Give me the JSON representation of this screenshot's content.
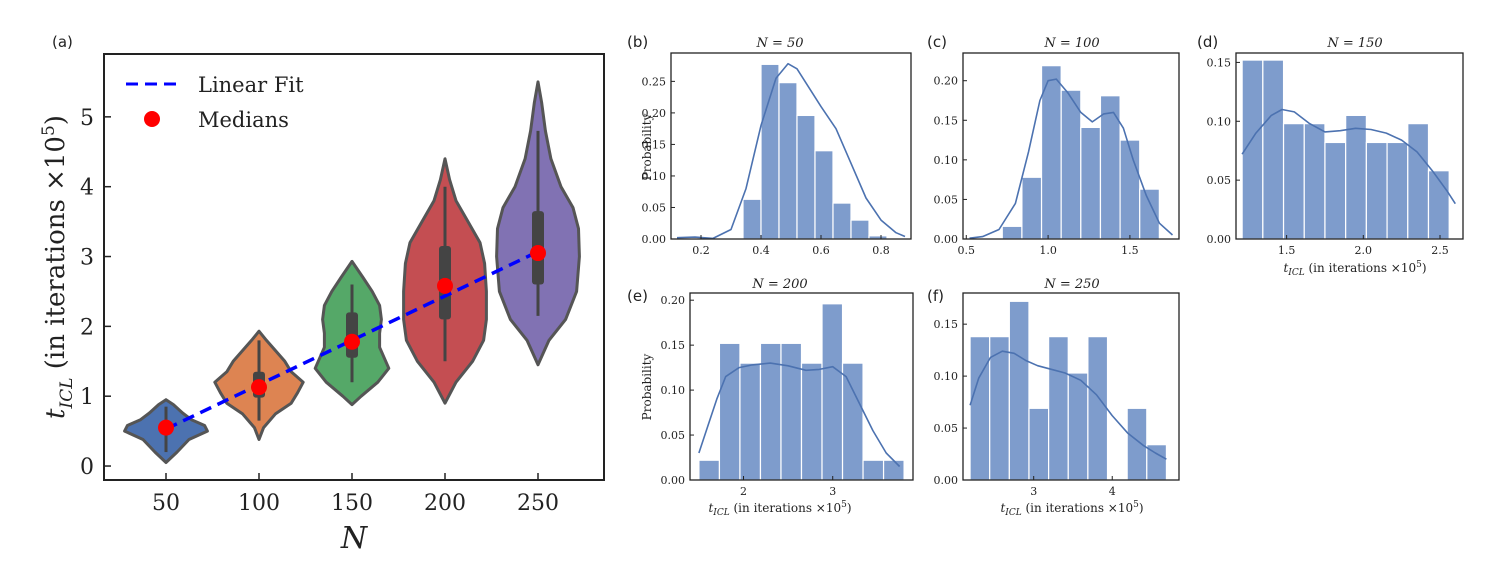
{
  "figure": {
    "colors": {
      "hist": "#7e9ccc",
      "kde": "#4c72b0",
      "fit": "#0000ff",
      "median": "#ff0000",
      "violin_edge": "#555555",
      "box": "#444444"
    }
  },
  "chart_data": [
    {
      "panel": "(a)",
      "type": "violin",
      "title": "",
      "xlabel": "N",
      "ylabel": "t_ICL (in iterations ×10^5)",
      "ylabel_parts": {
        "t": "t",
        "sub": "ICL",
        "text": " (in iterations ×10",
        "sup": "5",
        "close": ")"
      },
      "categories": [
        "50",
        "100",
        "150",
        "200",
        "250"
      ],
      "ylim": [
        -0.2,
        5.9
      ],
      "yticks": [
        0,
        1,
        2,
        3,
        4,
        5
      ],
      "violin_colors": [
        "#4c72b0",
        "#dd8452",
        "#55a868",
        "#c44e52",
        "#8172b3"
      ],
      "medians": [
        0.55,
        1.13,
        1.78,
        2.58,
        3.05
      ],
      "quartiles": [
        [
          0.45,
          0.62
        ],
        [
          0.98,
          1.35
        ],
        [
          1.55,
          2.2
        ],
        [
          2.1,
          3.15
        ],
        [
          2.6,
          3.65
        ]
      ],
      "whiskers": [
        [
          0.2,
          0.85
        ],
        [
          0.65,
          1.8
        ],
        [
          1.2,
          2.6
        ],
        [
          1.5,
          4.0
        ],
        [
          2.15,
          4.8
        ]
      ],
      "violin_shapes": [
        [
          [
            0.05,
            0
          ],
          [
            0.2,
            0.12
          ],
          [
            0.38,
            0.25
          ],
          [
            0.5,
            0.45
          ],
          [
            0.58,
            0.42
          ],
          [
            0.66,
            0.28
          ],
          [
            0.76,
            0.18
          ],
          [
            0.88,
            0.08
          ],
          [
            0.95,
            0
          ]
        ],
        [
          [
            0.38,
            0
          ],
          [
            0.55,
            0.05
          ],
          [
            0.75,
            0.18
          ],
          [
            0.9,
            0.35
          ],
          [
            1.05,
            0.42
          ],
          [
            1.2,
            0.48
          ],
          [
            1.35,
            0.35
          ],
          [
            1.5,
            0.28
          ],
          [
            1.65,
            0.18
          ],
          [
            1.8,
            0.08
          ],
          [
            1.93,
            0
          ]
        ],
        [
          [
            0.88,
            0
          ],
          [
            1.0,
            0.1
          ],
          [
            1.2,
            0.28
          ],
          [
            1.4,
            0.4
          ],
          [
            1.55,
            0.35
          ],
          [
            1.7,
            0.3
          ],
          [
            1.9,
            0.3
          ],
          [
            2.1,
            0.32
          ],
          [
            2.3,
            0.3
          ],
          [
            2.5,
            0.22
          ],
          [
            2.7,
            0.12
          ],
          [
            2.93,
            0
          ]
        ],
        [
          [
            0.9,
            0
          ],
          [
            1.2,
            0.12
          ],
          [
            1.5,
            0.3
          ],
          [
            1.8,
            0.42
          ],
          [
            2.1,
            0.45
          ],
          [
            2.5,
            0.45
          ],
          [
            2.9,
            0.43
          ],
          [
            3.2,
            0.38
          ],
          [
            3.5,
            0.25
          ],
          [
            3.8,
            0.12
          ],
          [
            4.1,
            0.05
          ],
          [
            4.4,
            0
          ]
        ],
        [
          [
            1.45,
            0
          ],
          [
            1.8,
            0.12
          ],
          [
            2.1,
            0.3
          ],
          [
            2.5,
            0.42
          ],
          [
            3.0,
            0.45
          ],
          [
            3.4,
            0.44
          ],
          [
            3.7,
            0.38
          ],
          [
            4.0,
            0.25
          ],
          [
            4.4,
            0.14
          ],
          [
            4.8,
            0.08
          ],
          [
            5.2,
            0.04
          ],
          [
            5.5,
            0
          ]
        ]
      ],
      "linear_fit": {
        "x_index": [
          0,
          4
        ],
        "y": [
          0.53,
          3.07
        ]
      },
      "legend": {
        "position": "top-left",
        "items": [
          "Linear Fit",
          "Medians"
        ]
      }
    },
    {
      "panel": "(b)",
      "type": "histogram",
      "title": "N = 50",
      "xlabel": "",
      "ylabel": "Probability",
      "xlim": [
        0.1,
        0.9
      ],
      "ylim": [
        0,
        0.295
      ],
      "xticks": [
        0.2,
        0.4,
        0.6,
        0.8
      ],
      "yticks": [
        0.0,
        0.05,
        0.1,
        0.15,
        0.2,
        0.25
      ],
      "bins": [
        0.34,
        0.4,
        0.46,
        0.52,
        0.58,
        0.64,
        0.7,
        0.76,
        0.82,
        0.88
      ],
      "values": [
        0.063,
        0.277,
        0.248,
        0.196,
        0.14,
        0.057,
        0.03,
        0.005,
        0.0
      ],
      "kde": [
        [
          0.12,
          0.002
        ],
        [
          0.18,
          0.003
        ],
        [
          0.24,
          0.001
        ],
        [
          0.3,
          0.015
        ],
        [
          0.35,
          0.08
        ],
        [
          0.4,
          0.18
        ],
        [
          0.45,
          0.255
        ],
        [
          0.49,
          0.278
        ],
        [
          0.52,
          0.27
        ],
        [
          0.56,
          0.24
        ],
        [
          0.6,
          0.21
        ],
        [
          0.65,
          0.175
        ],
        [
          0.7,
          0.12
        ],
        [
          0.75,
          0.065
        ],
        [
          0.8,
          0.03
        ],
        [
          0.85,
          0.01
        ],
        [
          0.88,
          0.004
        ]
      ]
    },
    {
      "panel": "(c)",
      "type": "histogram",
      "title": "N = 100",
      "xlabel": "",
      "ylabel": "",
      "xlim": [
        0.48,
        1.8
      ],
      "ylim": [
        0,
        0.235
      ],
      "xticks": [
        0.5,
        1.0,
        1.5
      ],
      "yticks": [
        0.0,
        0.05,
        0.1,
        0.15,
        0.2
      ],
      "bins": [
        0.72,
        0.84,
        0.96,
        1.08,
        1.2,
        1.32,
        1.44,
        1.56,
        1.68
      ],
      "values": [
        0.016,
        0.078,
        0.219,
        0.188,
        0.141,
        0.181,
        0.125,
        0.063
      ],
      "kde": [
        [
          0.52,
          0.001
        ],
        [
          0.6,
          0.003
        ],
        [
          0.7,
          0.012
        ],
        [
          0.8,
          0.045
        ],
        [
          0.88,
          0.11
        ],
        [
          0.95,
          0.175
        ],
        [
          1.0,
          0.2
        ],
        [
          1.05,
          0.202
        ],
        [
          1.12,
          0.185
        ],
        [
          1.2,
          0.16
        ],
        [
          1.27,
          0.148
        ],
        [
          1.34,
          0.158
        ],
        [
          1.4,
          0.16
        ],
        [
          1.46,
          0.14
        ],
        [
          1.52,
          0.1
        ],
        [
          1.6,
          0.055
        ],
        [
          1.68,
          0.02
        ],
        [
          1.76,
          0.005
        ]
      ]
    },
    {
      "panel": "(d)",
      "type": "histogram",
      "title": "N = 150",
      "xlabel": "t_ICL (in iterations ×10^5)",
      "ylabel": "",
      "xlim": [
        1.17,
        2.65
      ],
      "ylim": [
        0,
        0.158
      ],
      "xticks": [
        1.5,
        2.0,
        2.5
      ],
      "yticks": [
        0.0,
        0.05,
        0.1,
        0.15
      ],
      "bins": [
        1.21,
        1.345,
        1.48,
        1.615,
        1.75,
        1.885,
        2.02,
        2.155,
        2.29,
        2.425,
        2.56
      ],
      "values": [
        0.152,
        0.152,
        0.098,
        0.098,
        0.082,
        0.105,
        0.082,
        0.082,
        0.098,
        0.058
      ],
      "kde": [
        [
          1.21,
          0.072
        ],
        [
          1.3,
          0.09
        ],
        [
          1.4,
          0.105
        ],
        [
          1.47,
          0.11
        ],
        [
          1.55,
          0.108
        ],
        [
          1.65,
          0.098
        ],
        [
          1.75,
          0.091
        ],
        [
          1.85,
          0.092
        ],
        [
          1.95,
          0.094
        ],
        [
          2.05,
          0.093
        ],
        [
          2.15,
          0.09
        ],
        [
          2.25,
          0.084
        ],
        [
          2.35,
          0.074
        ],
        [
          2.45,
          0.058
        ],
        [
          2.55,
          0.04
        ],
        [
          2.6,
          0.03
        ]
      ]
    },
    {
      "panel": "(e)",
      "type": "histogram",
      "title": "N = 200",
      "xlabel": "t_ICL (in iterations ×10^5)",
      "ylabel": "Probability",
      "xlim": [
        1.4,
        3.9
      ],
      "ylim": [
        0,
        0.208
      ],
      "xticks": [
        2,
        3
      ],
      "yticks": [
        0.0,
        0.05,
        0.1,
        0.15,
        0.2
      ],
      "bins": [
        1.5,
        1.73,
        1.96,
        2.19,
        2.42,
        2.65,
        2.88,
        3.11,
        3.34,
        3.57,
        3.8
      ],
      "values": [
        0.022,
        0.152,
        0.13,
        0.152,
        0.152,
        0.13,
        0.196,
        0.13,
        0.022,
        0.022
      ],
      "kde": [
        [
          1.5,
          0.03
        ],
        [
          1.6,
          0.06
        ],
        [
          1.7,
          0.09
        ],
        [
          1.8,
          0.115
        ],
        [
          1.95,
          0.125
        ],
        [
          2.1,
          0.128
        ],
        [
          2.3,
          0.13
        ],
        [
          2.5,
          0.127
        ],
        [
          2.7,
          0.122
        ],
        [
          2.85,
          0.123
        ],
        [
          3.0,
          0.126
        ],
        [
          3.15,
          0.115
        ],
        [
          3.3,
          0.085
        ],
        [
          3.45,
          0.055
        ],
        [
          3.6,
          0.03
        ],
        [
          3.75,
          0.015
        ]
      ]
    },
    {
      "panel": "(f)",
      "type": "histogram",
      "title": "N = 250",
      "xlabel": "t_ICL (in iterations ×10^5)",
      "ylabel": "",
      "xlim": [
        2.1,
        4.85
      ],
      "ylim": [
        0,
        0.18
      ],
      "xticks": [
        3,
        4
      ],
      "yticks": [
        0.0,
        0.05,
        0.1,
        0.15
      ],
      "bins": [
        2.19,
        2.44,
        2.69,
        2.94,
        3.19,
        3.44,
        3.69,
        3.94,
        4.19,
        4.44,
        4.69
      ],
      "values": [
        0.138,
        0.138,
        0.172,
        0.069,
        0.138,
        0.103,
        0.138,
        0.0,
        0.069,
        0.034
      ],
      "kde": [
        [
          2.19,
          0.072
        ],
        [
          2.3,
          0.098
        ],
        [
          2.45,
          0.118
        ],
        [
          2.6,
          0.124
        ],
        [
          2.75,
          0.122
        ],
        [
          2.9,
          0.115
        ],
        [
          3.05,
          0.11
        ],
        [
          3.2,
          0.107
        ],
        [
          3.4,
          0.103
        ],
        [
          3.6,
          0.096
        ],
        [
          3.8,
          0.082
        ],
        [
          4.0,
          0.062
        ],
        [
          4.2,
          0.045
        ],
        [
          4.4,
          0.033
        ],
        [
          4.55,
          0.026
        ],
        [
          4.69,
          0.02
        ]
      ]
    }
  ]
}
